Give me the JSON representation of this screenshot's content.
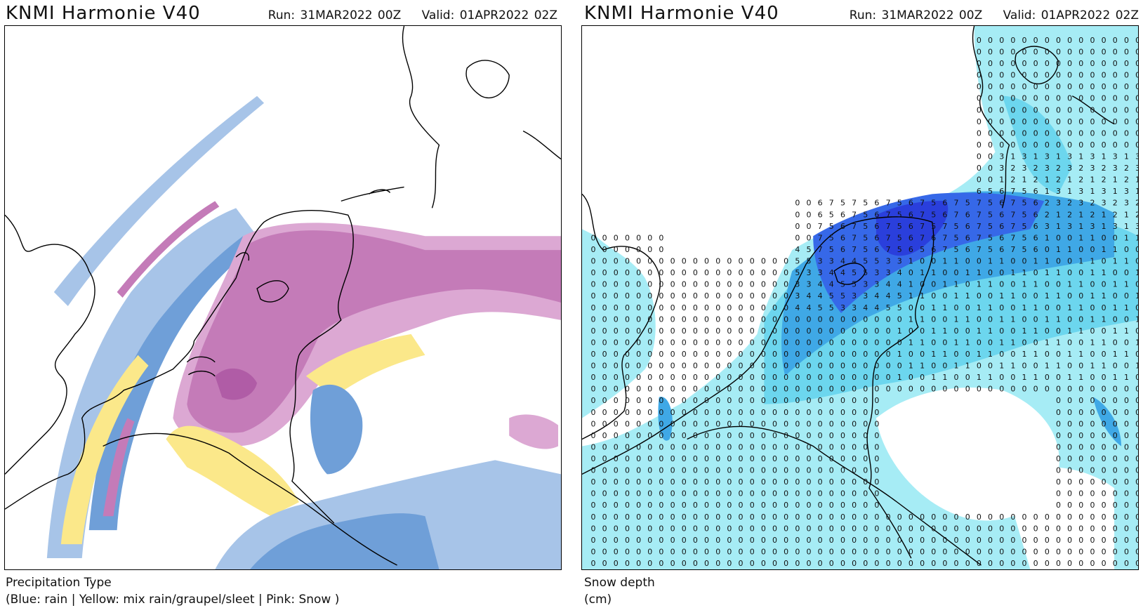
{
  "left_panel": {
    "title": "KNMI Harmonie V40",
    "run": "Run: 31MAR2022 00Z",
    "valid": "Valid: 01APR2022 02Z",
    "caption_line1": "Precipitation Type",
    "caption_line2": "(Blue: rain | Yellow: mix rain/graupel/sleet | Pink: Snow )",
    "colors": {
      "rain": "#6f9fd8",
      "rain_light": "#a7c4e8",
      "mix": "#fbe88a",
      "snow": "#c47bb8",
      "snow_light": "#dca8d3",
      "snow_dark": "#b05ca6"
    }
  },
  "right_panel": {
    "title": "KNMI Harmonie V40",
    "run": "Run: 31MAR2022 00Z",
    "valid": "Valid: 01APR2022 02Z",
    "caption_line1": "Snow depth",
    "caption_line2": "(cm)",
    "colors": {
      "level1": "#a6ecf5",
      "level2": "#6cd6ee",
      "level3": "#3fa8e6",
      "level4": "#3668e8",
      "level5": "#2a3fdc"
    }
  }
}
